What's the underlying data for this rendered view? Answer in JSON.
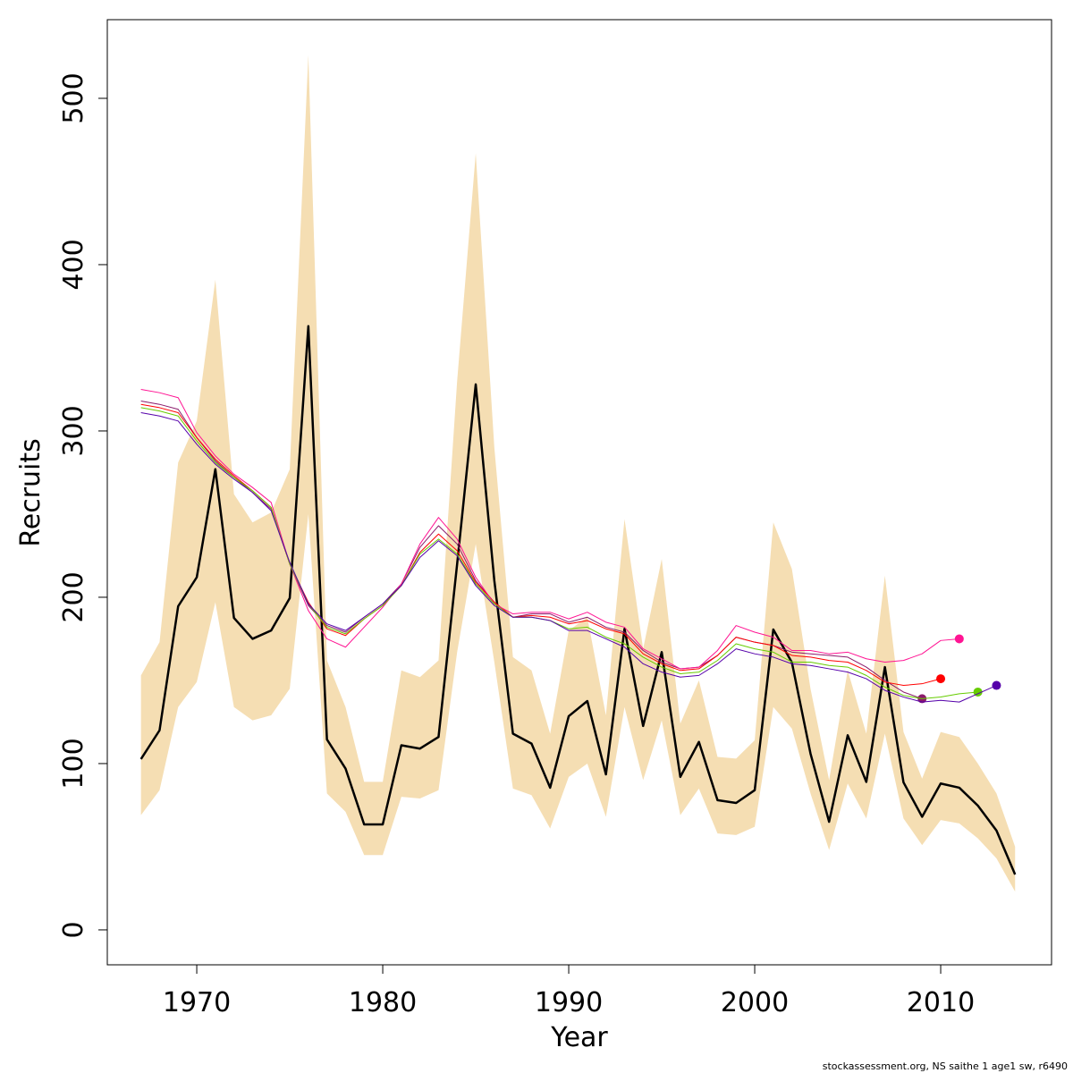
{
  "chart_data": {
    "type": "line",
    "xlabel": "Year",
    "ylabel": "Recruits",
    "footer": "stockassessment.org, NS saithe 1 age1 sw, r6490",
    "xlim": [
      1965.19,
      2015.96
    ],
    "ylim": [
      -21,
      547.3
    ],
    "xticks": [
      1970,
      1980,
      1990,
      2000,
      2010
    ],
    "yticks": [
      0,
      100,
      200,
      300,
      400,
      500
    ],
    "x": [
      1967,
      1968,
      1969,
      1970,
      1971,
      1972,
      1973,
      1974,
      1975,
      1976,
      1977,
      1978,
      1979,
      1980,
      1981,
      1982,
      1983,
      1984,
      1985,
      1986,
      1987,
      1988,
      1989,
      1990,
      1991,
      1992,
      1993,
      1994,
      1995,
      1996,
      1997,
      1998,
      1999,
      2000,
      2001,
      2002,
      2003,
      2004,
      2005,
      2006,
      2007,
      2008,
      2009,
      2010,
      2011,
      2012,
      2013,
      2014
    ],
    "band": {
      "color": "#f5deb3",
      "upper": [
        153,
        173,
        281,
        306,
        391,
        262,
        245,
        251,
        277,
        526,
        162,
        134,
        89,
        89,
        156,
        152,
        162,
        330,
        467,
        290,
        164,
        156,
        118,
        180,
        188,
        129,
        247,
        169,
        223,
        124,
        150,
        104,
        103,
        114,
        245,
        217,
        145,
        90,
        156,
        118,
        213,
        119,
        91,
        119,
        116,
        100,
        82,
        50
      ],
      "lower": [
        69,
        84,
        134,
        149,
        197,
        134,
        126,
        129,
        145,
        250,
        82,
        71,
        45,
        45,
        80,
        79,
        84,
        167,
        232,
        161,
        85,
        81,
        61,
        92,
        100,
        68,
        134,
        90,
        126,
        69,
        85,
        58,
        57,
        62,
        134,
        121,
        82,
        48,
        88,
        67,
        118,
        67,
        51,
        66,
        64,
        55,
        43,
        23
      ]
    },
    "series": [
      {
        "color": "#000000",
        "width": 2.5,
        "values": [
          102.7,
          120,
          194.6,
          212,
          277,
          187.6,
          175,
          180,
          199.5,
          363,
          114.5,
          97,
          63.4,
          63.4,
          111,
          109,
          116,
          220,
          328,
          210,
          118,
          112,
          85.5,
          128.5,
          137.6,
          93.5,
          181,
          122.6,
          167,
          92,
          113,
          78,
          76.3,
          84,
          180.6,
          160.8,
          106,
          65,
          117,
          89,
          158,
          88.7,
          68,
          88,
          85.5,
          74.7,
          59.7,
          33.3
        ]
      },
      {
        "color": "#8b1a6b",
        "width": 1,
        "endpoint": true,
        "values": [
          318,
          316,
          313,
          296,
          282,
          272,
          263,
          253,
          220,
          195,
          183,
          179,
          188,
          196,
          208,
          230,
          243,
          232,
          210,
          197,
          188,
          190,
          190,
          185,
          188,
          182,
          179,
          168,
          161,
          157,
          158,
          165,
          176,
          173,
          171,
          167,
          166,
          165,
          164,
          158,
          150,
          143,
          139,
          null,
          null,
          null,
          null,
          null
        ]
      },
      {
        "color": "#ff0000",
        "width": 1,
        "endpoint": true,
        "values": [
          316,
          314,
          311,
          296,
          283,
          273,
          264,
          254,
          220,
          197,
          181,
          177,
          187,
          195,
          207,
          227,
          238,
          228,
          209,
          197,
          188,
          189,
          188,
          184,
          186,
          181,
          178,
          166,
          160,
          156,
          157,
          165,
          176,
          173,
          171,
          165,
          164,
          162,
          161,
          156,
          149,
          147,
          148,
          151,
          null,
          null,
          null,
          null
        ]
      },
      {
        "color": "#ff1493",
        "width": 1,
        "endpoint": true,
        "values": [
          325,
          323,
          320,
          299,
          285,
          274,
          266,
          257,
          220,
          192,
          175,
          170,
          182,
          194,
          208,
          232,
          248,
          235,
          212,
          196,
          190,
          191,
          191,
          187,
          191,
          185,
          182,
          169,
          163,
          157,
          158,
          168,
          183,
          179,
          176,
          168,
          168,
          166,
          167,
          163,
          161,
          162,
          166,
          174,
          175,
          null,
          null,
          null
        ]
      },
      {
        "color": "#66cc00",
        "width": 1,
        "endpoint": true,
        "values": [
          314,
          312,
          309,
          294,
          281,
          272,
          264,
          254,
          220,
          196,
          182,
          178,
          187,
          195,
          207,
          226,
          235,
          226,
          208,
          196,
          188,
          188,
          186,
          181,
          182,
          176,
          172,
          164,
          158,
          154,
          155,
          162,
          172,
          169,
          167,
          161,
          161,
          159,
          158,
          153,
          146,
          141,
          139,
          140,
          142,
          143,
          null,
          null
        ]
      },
      {
        "color": "#5500aa",
        "width": 1,
        "endpoint": true,
        "values": [
          311,
          309,
          306,
          292,
          280,
          271,
          263,
          252,
          221,
          196,
          184,
          180,
          188,
          196,
          207,
          224,
          234,
          225,
          207,
          195,
          188,
          188,
          186,
          180,
          180,
          175,
          170,
          160,
          155,
          152,
          153,
          160,
          169,
          166,
          164,
          160,
          159,
          157,
          155,
          151,
          144,
          140,
          137,
          138,
          137,
          142,
          147,
          null
        ]
      }
    ]
  }
}
